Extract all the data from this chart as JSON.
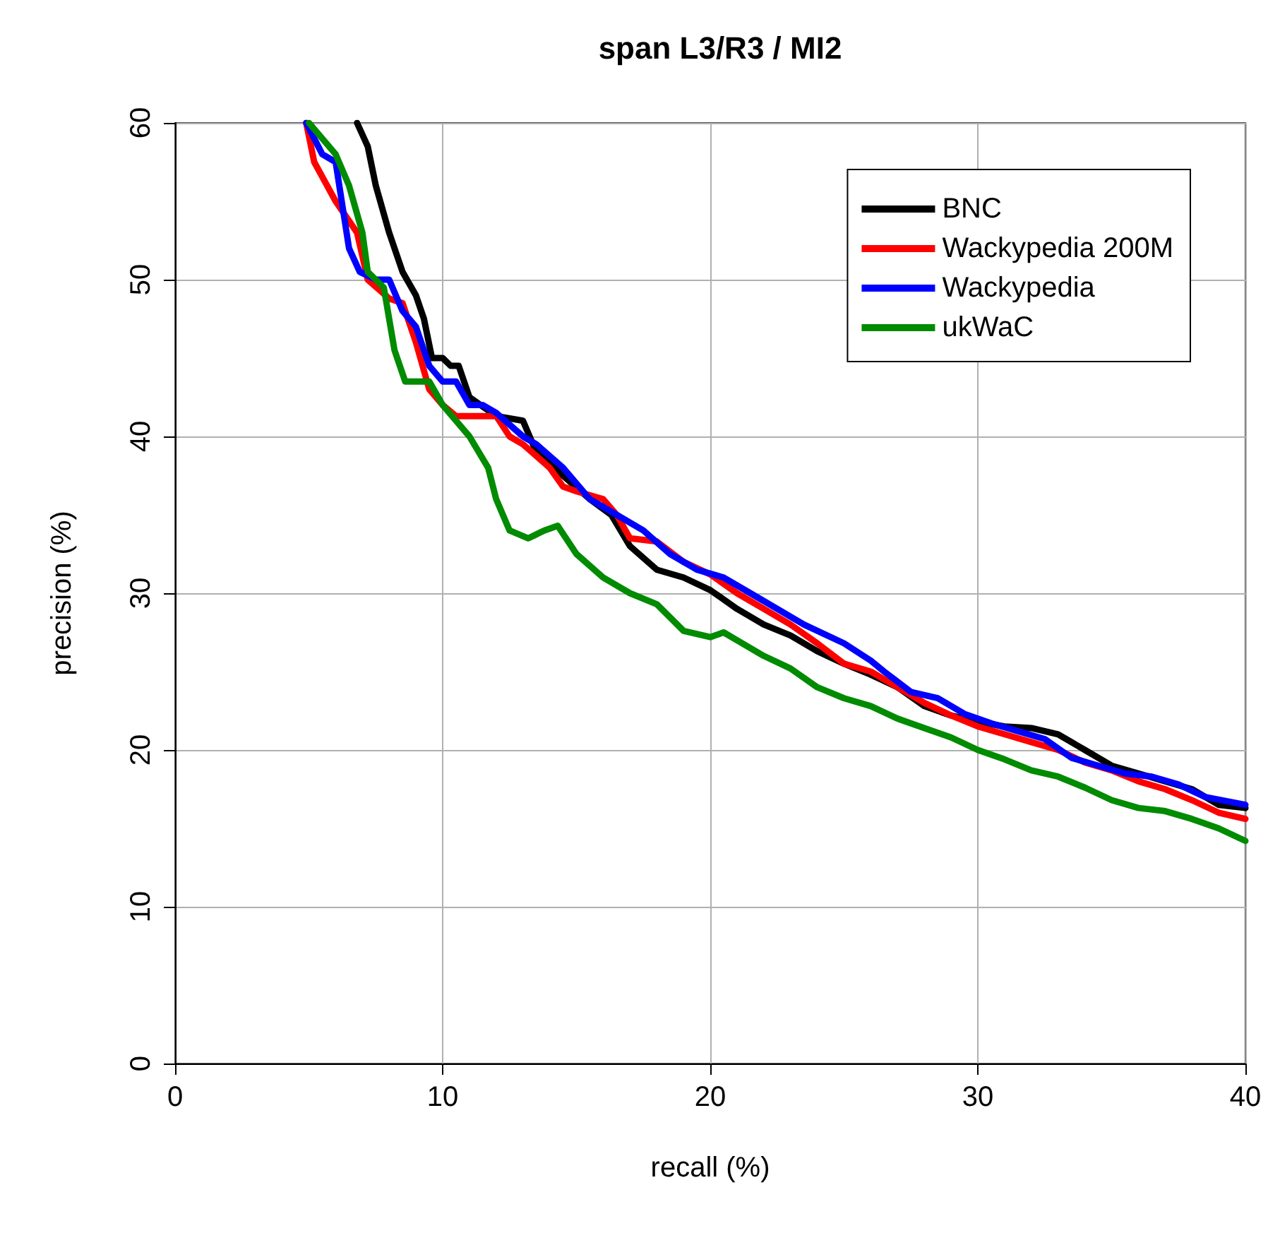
{
  "chart_data": {
    "type": "line",
    "title": "span L3/R3 / MI2",
    "xlabel": "recall (%)",
    "ylabel": "precision (%)",
    "xlim": [
      0,
      40
    ],
    "xticks": [
      0,
      10,
      20,
      30,
      40
    ],
    "ylim": [
      0,
      60
    ],
    "yticks": [
      0,
      10,
      20,
      30,
      40,
      50,
      60
    ],
    "grid": true,
    "legend": "top right",
    "marker": "none",
    "line_style": "solid",
    "series": [
      {
        "name": "BNC",
        "color": "#000000",
        "x": [
          6.8,
          7.2,
          7.5,
          8,
          8.5,
          9,
          9.3,
          9.6,
          10,
          10.3,
          10.6,
          11,
          12,
          13,
          13.5,
          14.5,
          15.5,
          16.3,
          17,
          18,
          19,
          20,
          21,
          22,
          23,
          24,
          25,
          26,
          27,
          28,
          29,
          30,
          31,
          32,
          33,
          34,
          35,
          36,
          37,
          38,
          39,
          40
        ],
        "values": [
          60,
          58.5,
          56,
          53,
          50.5,
          49,
          47.5,
          45,
          45,
          44.5,
          44.5,
          42.5,
          41.3,
          41,
          39,
          37.5,
          36,
          35,
          33,
          31.5,
          31,
          30.2,
          29,
          28,
          27.3,
          26.3,
          25.5,
          24.8,
          24,
          22.8,
          22.2,
          21.8,
          21.5,
          21.4,
          21,
          20,
          19,
          18.5,
          18,
          17.5,
          16.5,
          16.3
        ]
      },
      {
        "name": "Wackypedia 200M",
        "color": "#ff0000",
        "x": [
          4.9,
          5.2,
          6,
          6.8,
          7.2,
          8,
          8.5,
          9,
          9.5,
          10,
          10.5,
          11.5,
          12,
          12.5,
          13,
          14,
          14.5,
          15,
          16,
          16.5,
          17,
          18,
          19,
          20,
          21,
          22,
          23,
          24,
          25,
          26,
          27,
          28,
          29,
          30,
          31,
          32,
          33,
          34,
          35,
          36,
          37,
          38,
          39,
          40
        ],
        "values": [
          60,
          57.5,
          55,
          53,
          50,
          48.8,
          48.5,
          46,
          43,
          42,
          41.3,
          41.3,
          41.3,
          40,
          39.5,
          38,
          36.8,
          36.5,
          36,
          35,
          33.5,
          33.3,
          32,
          31.2,
          30,
          29,
          28,
          26.8,
          25.5,
          25,
          24,
          23,
          22.2,
          21.5,
          21,
          20.5,
          20,
          19.2,
          18.7,
          18,
          17.5,
          16.8,
          16,
          15.6
        ]
      },
      {
        "name": "Wackypedia",
        "color": "#0000ff",
        "x": [
          4.9,
          5.5,
          6,
          6.5,
          6.9,
          7.5,
          8,
          8.5,
          9,
          9.5,
          10,
          10.5,
          11,
          11.5,
          12,
          13,
          13.5,
          14.5,
          15.5,
          16.5,
          17.5,
          18.5,
          19.5,
          20.5,
          21.5,
          22.5,
          23.5,
          25,
          26,
          26.5,
          27.5,
          28.5,
          29.5,
          30.5,
          31.5,
          32.5,
          33.5,
          34.5,
          35.5,
          36.5,
          37.5,
          38.5,
          40
        ],
        "values": [
          60,
          58,
          57.5,
          52,
          50.5,
          50,
          50,
          48,
          47,
          44.5,
          43.5,
          43.5,
          42,
          42,
          41.5,
          40,
          39.5,
          38,
          36,
          35,
          34,
          32.5,
          31.5,
          31,
          30,
          29,
          28,
          26.8,
          25.7,
          25,
          23.7,
          23.3,
          22.3,
          21.7,
          21.2,
          20.7,
          19.5,
          19,
          18.5,
          18.3,
          17.8,
          17,
          16.5
        ]
      },
      {
        "name": "ukWaC",
        "color": "#008b00",
        "x": [
          5,
          5.5,
          6,
          6.5,
          7,
          7.2,
          7.8,
          8.2,
          8.6,
          9.5,
          10,
          11,
          11.7,
          12,
          12.5,
          13.2,
          13.8,
          14.3,
          15,
          16,
          17,
          18,
          19,
          20,
          20.5,
          21,
          22,
          23,
          24,
          25,
          26,
          27,
          28,
          29,
          30,
          31,
          32,
          33,
          34,
          35,
          36,
          37,
          38,
          39,
          40
        ],
        "values": [
          60,
          59,
          58,
          56,
          53,
          50.5,
          49.5,
          45.5,
          43.5,
          43.5,
          42,
          40,
          38,
          36,
          34,
          33.5,
          34,
          34.3,
          32.5,
          31,
          30,
          29.3,
          27.6,
          27.2,
          27.5,
          27,
          26,
          25.2,
          24,
          23.3,
          22.8,
          22,
          21.4,
          20.8,
          20,
          19.4,
          18.7,
          18.3,
          17.6,
          16.8,
          16.3,
          16.1,
          15.6,
          15,
          14.2
        ]
      }
    ]
  }
}
